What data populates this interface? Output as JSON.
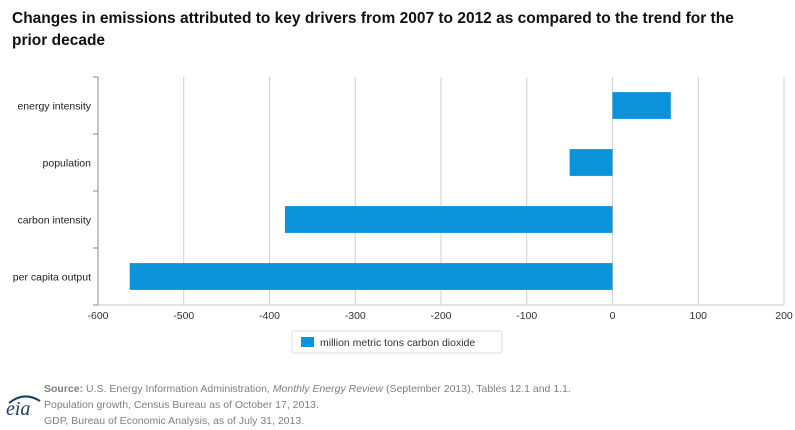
{
  "chart_data": {
    "type": "bar",
    "orientation": "horizontal",
    "title": "Changes in emissions attributed to key drivers from 2007 to 2012 as compared to the trend for the prior decade",
    "categories": [
      "energy intensity",
      "population",
      "carbon intensity",
      "per capita output"
    ],
    "series": [
      {
        "name": "million metric tons carbon dioxide",
        "values": [
          68,
          -50,
          -382,
          -563
        ],
        "color": "#0a93d8"
      }
    ],
    "xlim": [
      -600,
      200
    ],
    "xticks": [
      "-600",
      "-500",
      "-400",
      "-300",
      "-200",
      "-100",
      "0",
      "100",
      "200"
    ],
    "grid": true,
    "legend_position": "bottom"
  },
  "source": {
    "label": "Source:",
    "line1_pre": " U.S. Energy Information Administration, ",
    "line1_italic": "Monthly Energy Review",
    "line1_post": " (September 2013), Tables 12.1 and 1.1.",
    "line2": "Population growth, Census Bureau as of October 17, 2013.",
    "line3": "GDP, Bureau of Economic Analysis, as of July 31, 2013."
  },
  "logo": {
    "text": "eia"
  }
}
